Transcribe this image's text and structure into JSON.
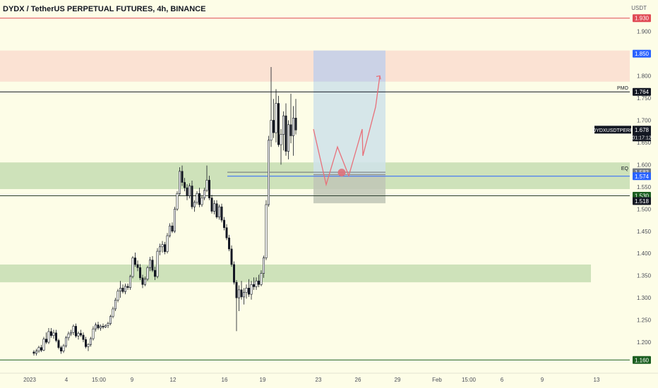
{
  "header": {
    "title": "DYDX / TetherUS PERPETUAL FUTURES, 4h, BINANCE",
    "currency": "USDT"
  },
  "colors": {
    "background": "#fdfde7",
    "candle_up": "#ffffff",
    "candle_down": "#131722",
    "resistance_zone": "#f9d8cc",
    "support_zone": "#b9d6a6",
    "long_target": "#c3c8e6",
    "long_range": "#cfe2e9",
    "long_stop": "#bfc6b6",
    "red_line": "#e04a55",
    "blue_line": "#2962ff",
    "green_label": "#1b5e20",
    "black_label": "#131722",
    "projection": "#e8707a"
  },
  "chart_data": {
    "type": "candlestick",
    "symbol": "DYDXUSDTPERP",
    "x_ticks": [
      "2023",
      "4",
      "15:00",
      "9",
      "12",
      "16",
      "19",
      "23",
      "26",
      "29",
      "Feb",
      "15:00",
      "6",
      "9",
      "13"
    ],
    "y_ticks": [
      "1.900",
      "1.850",
      "1.800",
      "1.750",
      "1.700",
      "1.650",
      "1.600",
      "1.550",
      "1.500",
      "1.450",
      "1.400",
      "1.350",
      "1.300",
      "1.250",
      "1.200"
    ],
    "ylim": [
      1.135,
      1.955
    ],
    "price_labels": [
      {
        "text": "1.930",
        "value": 1.93,
        "style": "red"
      },
      {
        "text": "1.850",
        "value": 1.85,
        "style": "blue"
      },
      {
        "text": "1.764",
        "value": 1.764,
        "style": "black",
        "tag": "PMO"
      },
      {
        "text": "1.583",
        "value": 1.583,
        "style": "gray",
        "tag": "EQ"
      },
      {
        "text": "1.574",
        "value": 1.574,
        "style": "blue"
      },
      {
        "text": "1.530",
        "value": 1.53,
        "style": "green"
      },
      {
        "text": "1.518",
        "value": 1.518,
        "style": "black"
      },
      {
        "text": "1.160",
        "value": 1.16,
        "style": "green"
      }
    ],
    "current_price": {
      "symbol_label": "DYDXUSDTPERP",
      "price": "1.678",
      "countdown": "01:17:12",
      "value": 1.678
    },
    "horizontal_lines": [
      {
        "value": 1.93,
        "color": "red"
      },
      {
        "value": 1.764,
        "color": "black"
      },
      {
        "value": 1.53,
        "color": "dark"
      },
      {
        "value": 1.16,
        "color": "green"
      }
    ],
    "zones": [
      {
        "kind": "resistance",
        "from": 1.787,
        "to": 1.857
      },
      {
        "kind": "support",
        "from": 1.545,
        "to": 1.605
      },
      {
        "kind": "support",
        "from": 1.335,
        "to": 1.375
      }
    ],
    "long_position": {
      "entry": 1.578,
      "target": 1.857,
      "stop": 1.513
    },
    "eq_line": 1.583,
    "blue_line": 1.574,
    "projection_path": [
      1.68,
      1.555,
      1.64,
      1.575,
      1.68,
      1.62,
      1.73,
      1.8
    ],
    "marker": 1.583,
    "candles": [
      [
        1.178,
        1.182,
        1.17,
        1.175
      ],
      [
        1.175,
        1.185,
        1.17,
        1.18
      ],
      [
        1.18,
        1.192,
        1.176,
        1.188
      ],
      [
        1.188,
        1.194,
        1.178,
        1.182
      ],
      [
        1.182,
        1.212,
        1.18,
        1.207
      ],
      [
        1.207,
        1.222,
        1.196,
        1.2
      ],
      [
        1.2,
        1.232,
        1.196,
        1.224
      ],
      [
        1.224,
        1.232,
        1.21,
        1.215
      ],
      [
        1.215,
        1.228,
        1.208,
        1.221
      ],
      [
        1.221,
        1.228,
        1.2,
        1.204
      ],
      [
        1.204,
        1.208,
        1.184,
        1.188
      ],
      [
        1.188,
        1.192,
        1.174,
        1.18
      ],
      [
        1.18,
        1.196,
        1.176,
        1.192
      ],
      [
        1.192,
        1.214,
        1.188,
        1.21
      ],
      [
        1.21,
        1.224,
        1.204,
        1.219
      ],
      [
        1.219,
        1.228,
        1.214,
        1.222
      ],
      [
        1.222,
        1.24,
        1.216,
        1.236
      ],
      [
        1.236,
        1.242,
        1.21,
        1.214
      ],
      [
        1.214,
        1.224,
        1.206,
        1.22
      ],
      [
        1.22,
        1.228,
        1.212,
        1.216
      ],
      [
        1.216,
        1.222,
        1.2,
        1.206
      ],
      [
        1.206,
        1.212,
        1.186,
        1.19
      ],
      [
        1.19,
        1.198,
        1.18,
        1.195
      ],
      [
        1.195,
        1.212,
        1.19,
        1.208
      ],
      [
        1.208,
        1.236,
        1.204,
        1.23
      ],
      [
        1.23,
        1.244,
        1.224,
        1.239
      ],
      [
        1.239,
        1.246,
        1.228,
        1.232
      ],
      [
        1.232,
        1.24,
        1.226,
        1.236
      ],
      [
        1.236,
        1.242,
        1.23,
        1.234
      ],
      [
        1.234,
        1.24,
        1.232,
        1.238
      ],
      [
        1.238,
        1.246,
        1.232,
        1.242
      ],
      [
        1.242,
        1.262,
        1.238,
        1.258
      ],
      [
        1.258,
        1.28,
        1.254,
        1.275
      ],
      [
        1.275,
        1.3,
        1.27,
        1.295
      ],
      [
        1.295,
        1.32,
        1.29,
        1.315
      ],
      [
        1.315,
        1.338,
        1.3,
        1.322
      ],
      [
        1.322,
        1.33,
        1.31,
        1.314
      ],
      [
        1.314,
        1.332,
        1.308,
        1.326
      ],
      [
        1.326,
        1.332,
        1.318,
        1.323
      ],
      [
        1.323,
        1.352,
        1.318,
        1.348
      ],
      [
        1.348,
        1.394,
        1.344,
        1.39
      ],
      [
        1.39,
        1.402,
        1.37,
        1.375
      ],
      [
        1.375,
        1.384,
        1.36,
        1.368
      ],
      [
        1.368,
        1.376,
        1.34,
        1.345
      ],
      [
        1.345,
        1.352,
        1.322,
        1.33
      ],
      [
        1.33,
        1.348,
        1.326,
        1.342
      ],
      [
        1.342,
        1.372,
        1.338,
        1.368
      ],
      [
        1.368,
        1.392,
        1.36,
        1.385
      ],
      [
        1.385,
        1.394,
        1.358,
        1.362
      ],
      [
        1.362,
        1.37,
        1.34,
        1.348
      ],
      [
        1.348,
        1.412,
        1.344,
        1.405
      ],
      [
        1.405,
        1.422,
        1.396,
        1.415
      ],
      [
        1.415,
        1.428,
        1.402,
        1.42
      ],
      [
        1.42,
        1.426,
        1.398,
        1.404
      ],
      [
        1.404,
        1.446,
        1.4,
        1.44
      ],
      [
        1.44,
        1.468,
        1.436,
        1.462
      ],
      [
        1.462,
        1.47,
        1.446,
        1.45
      ],
      [
        1.45,
        1.505,
        1.446,
        1.5
      ],
      [
        1.5,
        1.54,
        1.496,
        1.535
      ],
      [
        1.535,
        1.594,
        1.53,
        1.585
      ],
      [
        1.585,
        1.598,
        1.552,
        1.56
      ],
      [
        1.56,
        1.57,
        1.54,
        1.548
      ],
      [
        1.548,
        1.556,
        1.52,
        1.53
      ],
      [
        1.53,
        1.558,
        1.524,
        1.552
      ],
      [
        1.552,
        1.564,
        1.5,
        1.505
      ],
      [
        1.505,
        1.52,
        1.494,
        1.515
      ],
      [
        1.515,
        1.54,
        1.51,
        1.535
      ],
      [
        1.535,
        1.548,
        1.504,
        1.51
      ],
      [
        1.51,
        1.53,
        1.505,
        1.525
      ],
      [
        1.525,
        1.548,
        1.52,
        1.542
      ],
      [
        1.542,
        1.598,
        1.538,
        1.565
      ],
      [
        1.565,
        1.575,
        1.52,
        1.525
      ],
      [
        1.525,
        1.532,
        1.49,
        1.495
      ],
      [
        1.495,
        1.52,
        1.488,
        1.512
      ],
      [
        1.512,
        1.52,
        1.478,
        1.482
      ],
      [
        1.482,
        1.51,
        1.476,
        1.505
      ],
      [
        1.505,
        1.512,
        1.47,
        1.475
      ],
      [
        1.475,
        1.482,
        1.452,
        1.458
      ],
      [
        1.458,
        1.466,
        1.43,
        1.435
      ],
      [
        1.435,
        1.442,
        1.405,
        1.41
      ],
      [
        1.41,
        1.418,
        1.37,
        1.375
      ],
      [
        1.375,
        1.382,
        1.33,
        1.335
      ],
      [
        1.335,
        1.34,
        1.225,
        1.3
      ],
      [
        1.3,
        1.328,
        1.27,
        1.318
      ],
      [
        1.318,
        1.338,
        1.296,
        1.302
      ],
      [
        1.302,
        1.322,
        1.285,
        1.312
      ],
      [
        1.312,
        1.33,
        1.298,
        1.322
      ],
      [
        1.322,
        1.342,
        1.302,
        1.308
      ],
      [
        1.308,
        1.338,
        1.296,
        1.33
      ],
      [
        1.33,
        1.346,
        1.318,
        1.325
      ],
      [
        1.325,
        1.346,
        1.318,
        1.338
      ],
      [
        1.338,
        1.352,
        1.324,
        1.33
      ],
      [
        1.33,
        1.362,
        1.326,
        1.355
      ],
      [
        1.355,
        1.395,
        1.345,
        1.39
      ],
      [
        1.39,
        1.52,
        1.385,
        1.51
      ],
      [
        1.51,
        1.665,
        1.505,
        1.655
      ],
      [
        1.655,
        1.82,
        1.64,
        1.7
      ],
      [
        1.7,
        1.748,
        1.66,
        1.672
      ],
      [
        1.672,
        1.77,
        1.65,
        1.738
      ],
      [
        1.738,
        1.755,
        1.64,
        1.645
      ],
      [
        1.645,
        1.68,
        1.6,
        1.668
      ],
      [
        1.668,
        1.72,
        1.632,
        1.71
      ],
      [
        1.71,
        1.738,
        1.62,
        1.63
      ],
      [
        1.63,
        1.7,
        1.612,
        1.69
      ],
      [
        1.69,
        1.76,
        1.648,
        1.665
      ],
      [
        1.665,
        1.732,
        1.62,
        1.705
      ],
      [
        1.705,
        1.748,
        1.668,
        1.678
      ]
    ]
  }
}
